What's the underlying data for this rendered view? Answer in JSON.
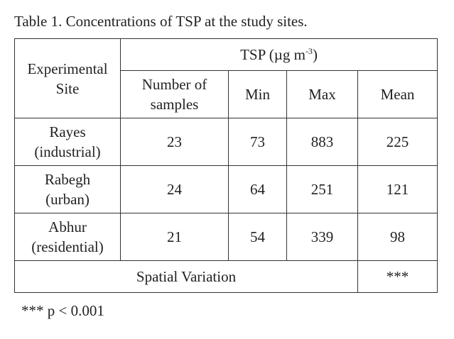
{
  "caption": "Table 1. Concentrations of TSP at the study sites.",
  "header": {
    "site_label_line1": "Experimental",
    "site_label_line2": "Site",
    "group_label_main": "TSP (µg m",
    "group_label_sup": "-3",
    "group_label_end": ")",
    "columns": {
      "samples_line1": "Number of",
      "samples_line2": "samples",
      "min": "Min",
      "max": "Max",
      "mean": "Mean"
    }
  },
  "rows": [
    {
      "site_line1": "Rayes",
      "site_line2": "(industrial)",
      "samples": "23",
      "min": "73",
      "max": "883",
      "mean": "225"
    },
    {
      "site_line1": "Rabegh",
      "site_line2": "(urban)",
      "samples": "24",
      "min": "64",
      "max": "251",
      "mean": "121"
    },
    {
      "site_line1": "Abhur",
      "site_line2": "(residential)",
      "samples": "21",
      "min": "54",
      "max": "339",
      "mean": "98"
    }
  ],
  "footer": {
    "label": "Spatial Variation",
    "value": "***"
  },
  "footnote": "*** p < 0.001"
}
